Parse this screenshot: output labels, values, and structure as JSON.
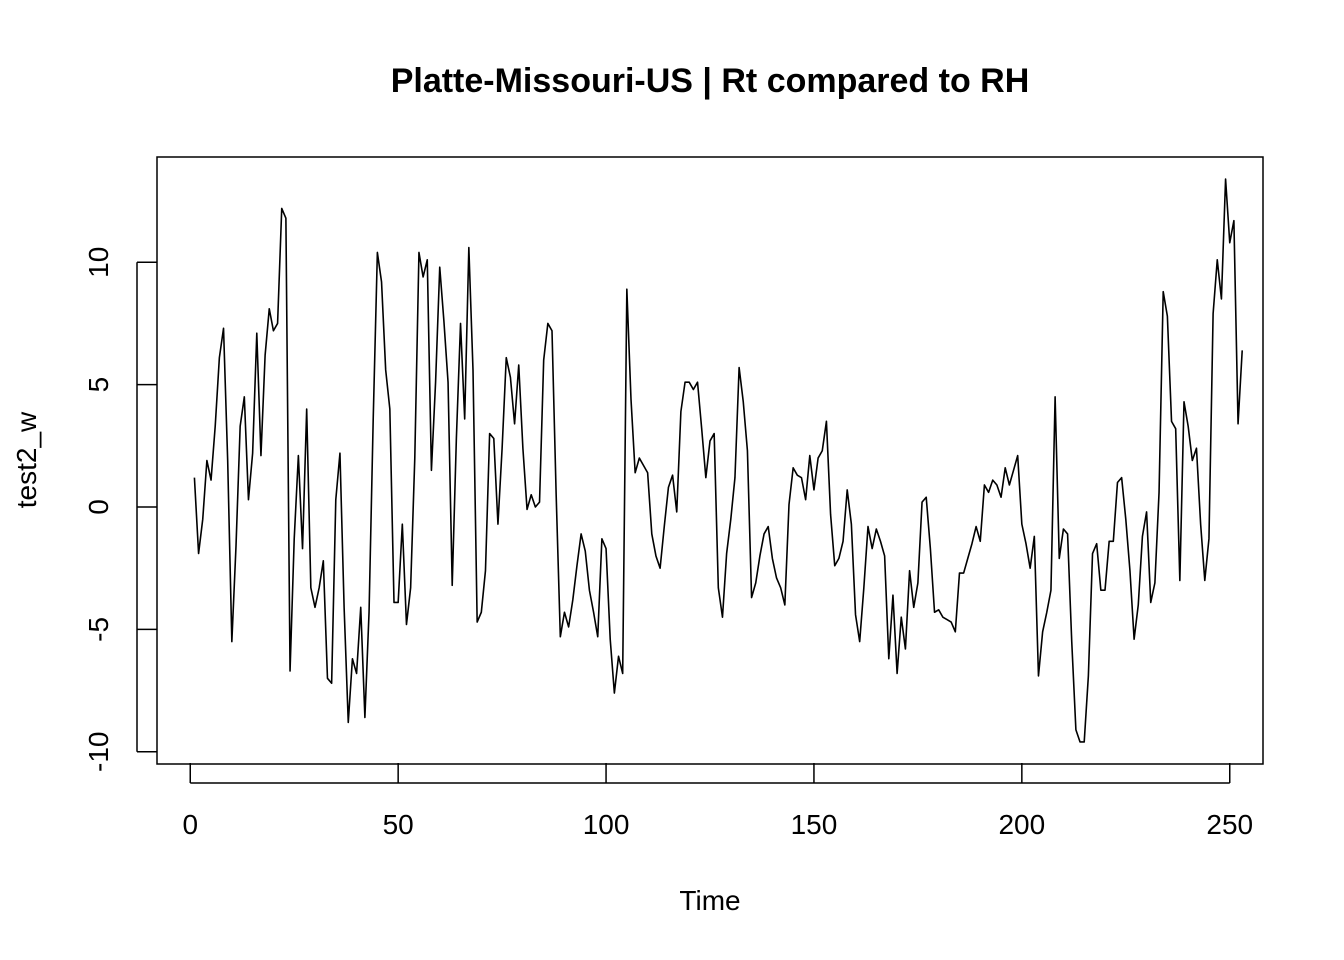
{
  "chart_data": {
    "type": "line",
    "title": "Platte-Missouri-US | Rt compared to RH",
    "xlabel": "Time",
    "ylabel": "test2_w",
    "xlim": [
      -8,
      258
    ],
    "ylim": [
      -10.5,
      14.3
    ],
    "x_ticks": [
      0,
      50,
      100,
      150,
      200,
      250
    ],
    "x_tick_labels": [
      "0",
      "50",
      "100",
      "150",
      "200",
      "250"
    ],
    "y_ticks": [
      -10,
      -5,
      0,
      5,
      10
    ],
    "y_tick_labels": [
      "-10",
      "-5",
      "0",
      "5",
      "10"
    ],
    "grid": false,
    "legend": "none",
    "colors": {
      "line": "#000000",
      "frame": "#000000",
      "background": "#ffffff"
    },
    "series": [
      {
        "x_start": 1,
        "values": [
          1.2,
          -1.9,
          -0.5,
          1.9,
          1.1,
          3.3,
          6.1,
          7.3,
          1.9,
          -5.5,
          -1.6,
          3.3,
          4.5,
          0.3,
          2.2,
          7.1,
          2.1,
          6.2,
          8.1,
          7.2,
          7.5,
          12.2,
          11.8,
          -6.7,
          -1.3,
          2.1,
          -1.7,
          4.0,
          -3.3,
          -4.1,
          -3.3,
          -2.2,
          -7.0,
          -7.2,
          0.3,
          2.2,
          -4.1,
          -8.8,
          -6.2,
          -6.8,
          -4.1,
          -8.6,
          -4.3,
          3.6,
          10.4,
          9.2,
          5.6,
          4.0,
          -3.9,
          -3.9,
          -0.7,
          -4.8,
          -3.3,
          2.0,
          10.4,
          9.4,
          10.1,
          1.5,
          5.1,
          9.8,
          7.6,
          5.1,
          -3.2,
          2.8,
          7.5,
          3.6,
          10.6,
          5.6,
          -4.7,
          -4.3,
          -2.6,
          3.0,
          2.8,
          -0.7,
          2.4,
          6.1,
          5.3,
          3.4,
          5.8,
          2.4,
          -0.1,
          0.5,
          0.0,
          0.2,
          6.0,
          7.5,
          7.2,
          0.5,
          -5.3,
          -4.3,
          -4.9,
          -3.8,
          -2.4,
          -1.1,
          -1.8,
          -3.4,
          -4.3,
          -5.3,
          -1.3,
          -1.7,
          -5.4,
          -7.6,
          -6.1,
          -6.8,
          8.9,
          4.4,
          1.4,
          2.0,
          1.7,
          1.4,
          -1.1,
          -2.0,
          -2.5,
          -0.8,
          0.8,
          1.3,
          -0.2,
          3.9,
          5.1,
          5.1,
          4.8,
          5.1,
          3.2,
          1.2,
          2.7,
          3.0,
          -3.3,
          -4.5,
          -1.9,
          -0.5,
          1.2,
          5.7,
          4.3,
          2.3,
          -3.7,
          -3.1,
          -2.0,
          -1.1,
          -0.8,
          -2.1,
          -2.9,
          -3.3,
          -4.0,
          0.1,
          1.6,
          1.3,
          1.2,
          0.3,
          2.1,
          0.7,
          2.0,
          2.3,
          3.5,
          -0.3,
          -2.4,
          -2.1,
          -1.4,
          0.7,
          -0.7,
          -4.4,
          -5.5,
          -3.3,
          -0.8,
          -1.7,
          -0.9,
          -1.4,
          -2.0,
          -6.2,
          -3.6,
          -6.8,
          -4.5,
          -5.8,
          -2.6,
          -4.1,
          -3.1,
          0.2,
          0.4,
          -1.7,
          -4.3,
          -4.2,
          -4.5,
          -4.6,
          -4.7,
          -5.1,
          -2.7,
          -2.7,
          -2.1,
          -1.5,
          -0.8,
          -1.4,
          0.9,
          0.6,
          1.1,
          0.9,
          0.4,
          1.6,
          0.9,
          1.5,
          2.1,
          -0.7,
          -1.5,
          -2.5,
          -1.2,
          -6.9,
          -5.1,
          -4.3,
          -3.4,
          4.5,
          -2.1,
          -0.9,
          -1.1,
          -5.5,
          -9.1,
          -9.6,
          -9.6,
          -6.9,
          -1.9,
          -1.5,
          -3.4,
          -3.4,
          -1.4,
          -1.4,
          1.0,
          1.2,
          -0.5,
          -2.6,
          -5.4,
          -4.0,
          -1.2,
          -0.2,
          -3.9,
          -3.1,
          0.6,
          8.8,
          7.8,
          3.5,
          3.2,
          -3.0,
          4.3,
          3.3,
          1.9,
          2.4,
          -0.7,
          -3.0,
          -1.3,
          7.9,
          10.1,
          8.5,
          13.4,
          10.8,
          11.7,
          3.4,
          6.4
        ]
      }
    ]
  }
}
